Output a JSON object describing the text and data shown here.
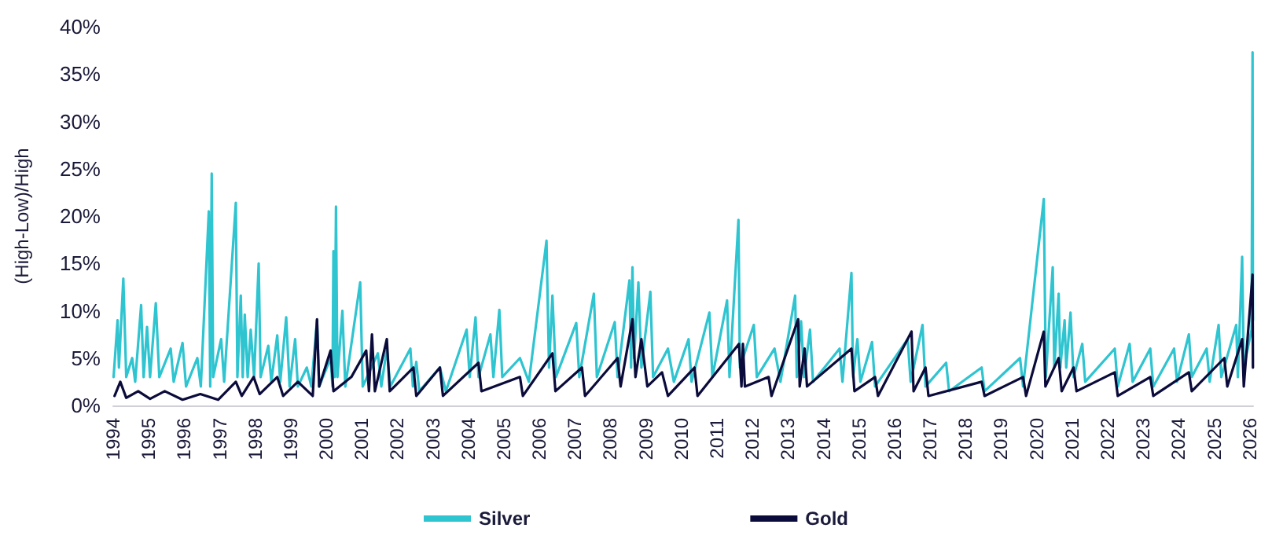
{
  "chart_data": {
    "type": "line",
    "ylabel": "(High-Low)/High",
    "legend": "bottom",
    "grid": false,
    "marker": "none",
    "line_style": "solid",
    "xlim": [
      "1994-01-01",
      "2026-02-05"
    ],
    "xticks": [
      "1994",
      "1995",
      "1996",
      "1997",
      "1998",
      "1999",
      "2000",
      "2001",
      "2002",
      "2003",
      "2004",
      "2005",
      "2006",
      "2007",
      "2008",
      "2009",
      "2010",
      "2011",
      "2012",
      "2013",
      "2014",
      "2015",
      "2016",
      "2017",
      "2018",
      "2019",
      "2020",
      "2021",
      "2022",
      "2023",
      "2024",
      "2025",
      "2026"
    ],
    "ylim": [
      0,
      40
    ],
    "yticks": [
      {
        "value": 0,
        "label": "0%"
      },
      {
        "value": 5,
        "label": "5%"
      },
      {
        "value": 10,
        "label": "10%"
      },
      {
        "value": 15,
        "label": "15%"
      },
      {
        "value": 20,
        "label": "20%"
      },
      {
        "value": 25,
        "label": "25%"
      },
      {
        "value": 30,
        "label": "30%"
      },
      {
        "value": 35,
        "label": "35%"
      },
      {
        "value": 40,
        "label": "40%"
      }
    ],
    "series": [
      {
        "name": "Silver",
        "color": "#2ec4d0",
        "x": [
          "1994-01-05",
          "1994-02-15",
          "1994-03-01",
          "1994-04-15",
          "1994-05-15",
          "1994-07-15",
          "1994-08-15",
          "1994-10-15",
          "1994-11-10",
          "1994-12-15",
          "1995-01-15",
          "1995-03-15",
          "1995-04-20",
          "1995-08-15",
          "1995-09-15",
          "1995-12-15",
          "1996-01-20",
          "1996-05-15",
          "1996-06-20",
          "1996-09-10",
          "1996-09-25",
          "1996-10-10",
          "1996-10-25",
          "1997-01-15",
          "1997-02-15",
          "1997-06-15",
          "1997-07-01",
          "1997-08-05",
          "1997-08-25",
          "1997-09-15",
          "1997-10-15",
          "1997-11-15",
          "1997-12-20",
          "1998-02-05",
          "1998-02-25",
          "1998-05-15",
          "1998-06-15",
          "1998-08-15",
          "1998-09-15",
          "1998-11-15",
          "1998-12-20",
          "1999-02-15",
          "1999-03-15",
          "1999-06-15",
          "1999-08-01",
          "1999-09-28",
          "1999-10-20",
          "2000-02-15",
          "2000-03-05",
          "2000-03-15",
          "2000-03-28",
          "2000-04-10",
          "2000-04-25",
          "2000-06-15",
          "2000-07-15",
          "2000-12-15",
          "2001-01-10",
          "2001-06-15",
          "2001-07-20",
          "2001-09-15",
          "2001-10-20",
          "2002-05-15",
          "2002-06-10",
          "2002-07-15",
          "2002-08-15",
          "2003-03-15",
          "2003-05-15",
          "2003-12-15",
          "2004-01-15",
          "2004-03-15",
          "2004-04-15",
          "2004-08-15",
          "2004-09-15",
          "2004-11-15",
          "2004-12-15",
          "2005-06-15",
          "2005-09-15",
          "2006-03-15",
          "2006-04-10",
          "2006-05-15",
          "2006-06-20",
          "2007-01-15",
          "2007-02-15",
          "2007-07-15",
          "2007-08-15",
          "2008-02-15",
          "2008-03-15",
          "2008-07-15",
          "2008-08-01",
          "2008-08-15",
          "2008-09-01",
          "2008-10-15",
          "2008-11-15",
          "2009-02-15",
          "2009-03-15",
          "2009-08-15",
          "2009-10-15",
          "2010-03-15",
          "2010-04-15",
          "2010-10-15",
          "2010-11-15",
          "2011-04-15",
          "2011-05-10",
          "2011-08-10",
          "2011-08-25",
          "2012-01-15",
          "2012-02-15",
          "2012-08-15",
          "2012-10-15",
          "2013-03-15",
          "2013-04-01",
          "2013-05-15",
          "2013-06-15",
          "2013-08-15",
          "2013-09-15",
          "2014-06-15",
          "2014-07-15",
          "2014-10-15",
          "2014-11-01",
          "2014-12-15",
          "2015-01-15",
          "2015-05-15",
          "2015-06-15",
          "2016-05-15",
          "2016-06-15",
          "2016-10-15",
          "2016-11-15",
          "2017-06-15",
          "2017-07-15",
          "2018-06-15",
          "2018-07-15",
          "2019-07-15",
          "2019-08-15",
          "2020-03-15",
          "2020-04-05",
          "2020-06-15",
          "2020-07-01",
          "2020-08-15",
          "2020-09-01",
          "2020-10-15",
          "2020-11-01",
          "2020-12-15",
          "2021-01-15",
          "2021-04-15",
          "2021-05-15",
          "2022-03-15",
          "2022-04-15",
          "2022-08-15",
          "2022-09-15",
          "2023-03-15",
          "2023-04-15",
          "2023-11-15",
          "2023-12-15",
          "2024-04-15",
          "2024-05-15",
          "2024-10-15",
          "2024-11-15",
          "2025-02-15",
          "2025-03-15",
          "2025-08-15",
          "2025-09-01",
          "2025-10-15",
          "2025-11-01",
          "2026-01-20",
          "2026-01-30",
          "2026-02-03"
        ],
        "values": [
          3,
          9,
          4,
          13.4,
          3,
          5,
          2.5,
          10.6,
          3,
          8.3,
          3,
          10.8,
          3,
          6,
          2.5,
          6.6,
          2,
          5,
          2,
          20.5,
          2,
          24.5,
          3,
          7,
          2.5,
          21.4,
          3,
          11.6,
          3,
          9.6,
          3,
          8,
          3,
          15,
          3,
          6.3,
          2.5,
          7.4,
          2.5,
          9.3,
          2,
          7,
          2,
          4,
          2,
          9,
          2,
          5,
          2,
          16.3,
          3,
          21,
          3,
          10,
          2,
          13,
          2,
          5.5,
          2,
          6,
          2,
          6,
          2,
          4.6,
          1.5,
          4,
          1.5,
          8,
          3,
          9.3,
          3,
          7.5,
          3,
          10.1,
          3,
          5,
          2.5,
          17.4,
          4,
          11.6,
          3,
          8.7,
          3,
          11.8,
          3,
          8.8,
          3,
          13.2,
          4,
          14.6,
          5,
          13,
          4,
          12,
          3,
          6,
          2.5,
          7,
          2.5,
          9.8,
          3,
          11.1,
          3,
          19.6,
          4,
          8.5,
          3,
          6,
          2.5,
          11.6,
          3,
          8.9,
          3,
          8,
          2.5,
          6,
          2.5,
          14,
          3,
          7,
          2.5,
          6.7,
          2,
          7,
          2.5,
          8.5,
          2,
          4.5,
          1.5,
          4,
          1.5,
          5,
          2,
          21.8,
          3,
          14.6,
          4,
          11.8,
          4,
          9,
          4,
          9.8,
          3,
          6.5,
          2.5,
          6,
          2,
          6.5,
          2.5,
          6,
          2,
          6,
          2.5,
          7.5,
          3,
          6,
          2.5,
          8.5,
          3,
          8.5,
          3,
          15.7,
          4,
          8,
          37.3,
          9
        ]
      },
      {
        "name": "Gold",
        "color": "#0b0b3b",
        "x": [
          "1994-01-15",
          "1994-03-15",
          "1994-05-15",
          "1994-09-15",
          "1995-01-15",
          "1995-06-15",
          "1995-12-15",
          "1996-06-15",
          "1996-12-15",
          "1997-06-15",
          "1997-08-15",
          "1997-12-15",
          "1998-02-15",
          "1998-08-15",
          "1998-10-15",
          "1999-03-15",
          "1999-08-15",
          "1999-09-28",
          "1999-10-20",
          "2000-02-15",
          "2000-03-15",
          "2000-09-15",
          "2001-02-15",
          "2001-03-15",
          "2001-04-15",
          "2001-05-15",
          "2001-09-15",
          "2001-10-15",
          "2002-06-15",
          "2002-07-15",
          "2003-03-15",
          "2003-04-15",
          "2004-04-15",
          "2004-05-15",
          "2005-06-15",
          "2005-07-15",
          "2006-05-15",
          "2006-06-15",
          "2007-03-15",
          "2007-04-15",
          "2008-03-15",
          "2008-04-15",
          "2008-08-15",
          "2008-09-15",
          "2008-11-15",
          "2009-01-15",
          "2009-06-15",
          "2009-08-15",
          "2010-05-15",
          "2010-06-15",
          "2011-08-15",
          "2011-09-10",
          "2011-09-25",
          "2011-10-15",
          "2012-06-15",
          "2012-07-15",
          "2013-04-15",
          "2013-05-01",
          "2013-06-20",
          "2013-07-15",
          "2014-10-15",
          "2014-11-15",
          "2015-06-15",
          "2015-07-15",
          "2016-06-24",
          "2016-07-15",
          "2016-11-15",
          "2016-12-15",
          "2018-06-15",
          "2018-07-15",
          "2019-08-15",
          "2019-09-15",
          "2020-03-15",
          "2020-04-01",
          "2020-08-15",
          "2020-09-15",
          "2021-01-15",
          "2021-02-15",
          "2022-03-15",
          "2022-04-15",
          "2023-03-15",
          "2023-04-15",
          "2024-04-15",
          "2024-05-15",
          "2025-04-15",
          "2025-05-15",
          "2025-10-15",
          "2025-11-01",
          "2026-01-30",
          "2026-02-03"
        ],
        "values": [
          1,
          2.5,
          0.8,
          1.5,
          0.7,
          1.5,
          0.6,
          1.2,
          0.6,
          2.5,
          1,
          3,
          1.2,
          3,
          1,
          2.5,
          1,
          9.1,
          2,
          5.8,
          1.5,
          3,
          5.8,
          1.5,
          7.5,
          1.5,
          7,
          1.5,
          4,
          1,
          4,
          1,
          4.5,
          1.5,
          3,
          1,
          5.5,
          1.5,
          4,
          1,
          5,
          2,
          9.1,
          3,
          7,
          2,
          3.5,
          1,
          4,
          1,
          6.5,
          2,
          6.5,
          2,
          3,
          1,
          9.1,
          2,
          6,
          2,
          6,
          1.5,
          3,
          1,
          7.8,
          1.5,
          4,
          1,
          2.5,
          1,
          3,
          1,
          7.8,
          2,
          5,
          1.5,
          4,
          1.5,
          3.5,
          1,
          3,
          1,
          3.5,
          1.5,
          5,
          2,
          7,
          2,
          13.8,
          4
        ]
      }
    ]
  }
}
